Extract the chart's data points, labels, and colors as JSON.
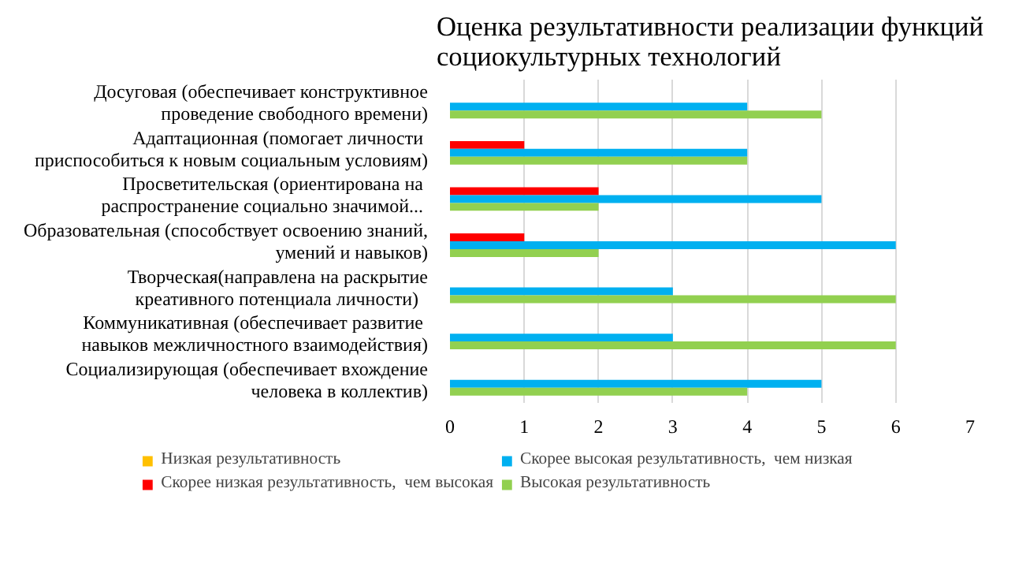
{
  "chart_data": {
    "type": "bar",
    "orientation": "horizontal",
    "title": "Оценка результативности реализации функций\nсоциокультурных технологий",
    "categories": [
      "Досуговая (обеспечивает конструктивное\nпроведение свободного времени)",
      "Адаптационная  (помогает личности\nприспособиться к новым социальным условиям)",
      "Просветительская  (ориентирована на\nраспространение  социально значимой...",
      "Образовательная (способствует освоению знаний,\nумений и навыков)",
      "Творческая(направлена на раскрытие\nкреативного  потенциала  личности)",
      "Коммуникативная  (обеспечивает развитие\nнавыков межличностного взаимодействия)",
      "Социализирующая (обеспечивает вхождение\nчеловека в коллектив)"
    ],
    "series": [
      {
        "name": "Низкая результативность",
        "color": "#ffc000",
        "values": [
          0,
          0,
          0,
          0,
          0,
          0,
          0
        ]
      },
      {
        "name": "Скорее низкая результативность,  чем высокая",
        "color": "#ff0000",
        "values": [
          0,
          1,
          2,
          1,
          0,
          0,
          0
        ]
      },
      {
        "name": "Скорее высокая результативность,  чем низкая",
        "color": "#00b0f0",
        "values": [
          4,
          4,
          5,
          6,
          3,
          3,
          5
        ]
      },
      {
        "name": "Высокая результативность",
        "color": "#92d050",
        "values": [
          5,
          4,
          2,
          2,
          6,
          6,
          4
        ]
      }
    ],
    "xlim": [
      0,
      7
    ],
    "xticks": [
      0,
      1,
      2,
      3,
      4,
      5,
      6,
      7
    ],
    "grid": "x",
    "legend": "bottom"
  }
}
